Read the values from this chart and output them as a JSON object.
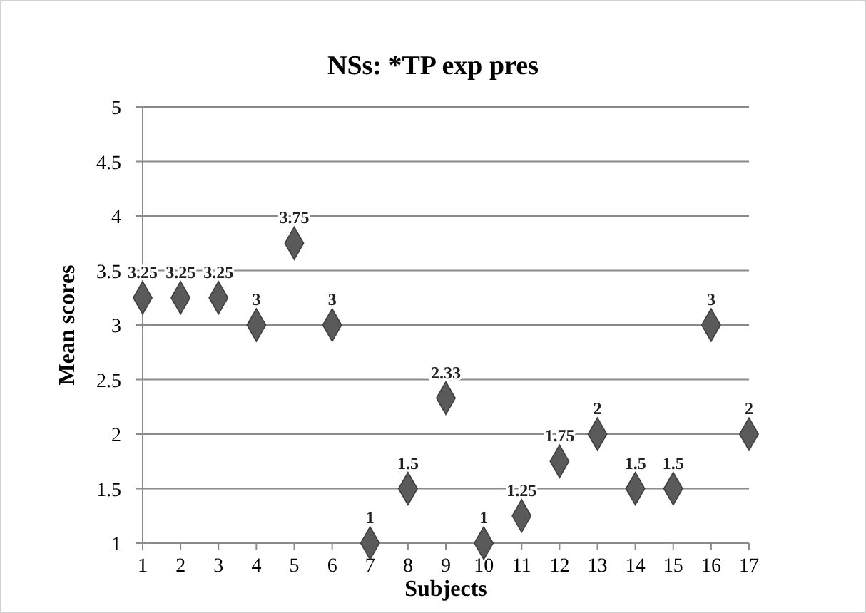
{
  "chart_data": {
    "type": "scatter",
    "title": "NSs: *TP exp pres",
    "xlabel": "Subjects",
    "ylabel": "Mean scores",
    "x": [
      1,
      2,
      3,
      4,
      5,
      6,
      7,
      8,
      9,
      10,
      11,
      12,
      13,
      14,
      15,
      16,
      17
    ],
    "series": [
      {
        "color": "#5a5a5a",
        "values": [
          3.25,
          3.25,
          3.25,
          3,
          3.75,
          3,
          1,
          1.5,
          2.33,
          1,
          1.25,
          1.75,
          2,
          1.5,
          1.5,
          3,
          2
        ]
      }
    ],
    "xlim": [
      1,
      17
    ],
    "xticks": [
      1,
      2,
      3,
      4,
      5,
      6,
      7,
      8,
      9,
      10,
      11,
      12,
      13,
      14,
      15,
      16,
      17
    ],
    "ylim": [
      1,
      5
    ],
    "yticks": [
      1,
      1.5,
      2,
      2.5,
      3,
      3.5,
      4,
      4.5,
      5
    ],
    "grid": "y",
    "marker": "diamond",
    "data_labels": true
  }
}
